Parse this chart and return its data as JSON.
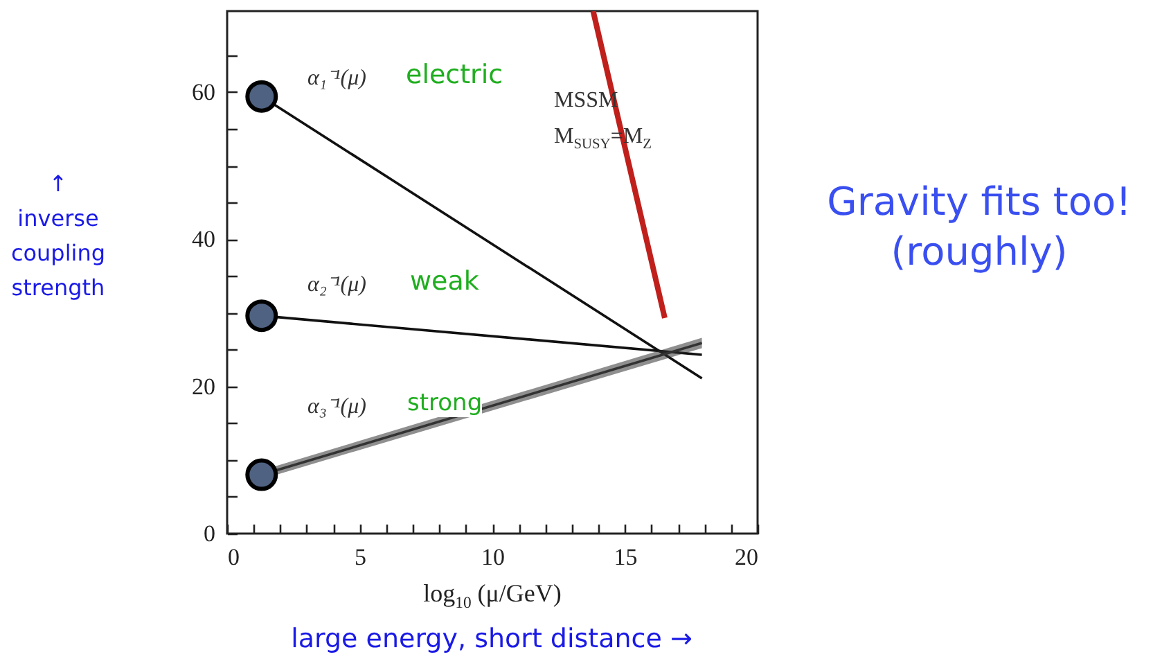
{
  "chart_data": {
    "type": "line",
    "xlabel": "log$_{10}$ (μ/GeV)",
    "ylabel": "↑\ninverse\ncoupling\nstrength",
    "xlim": [
      0,
      20
    ],
    "ylim": [
      0,
      71
    ],
    "xticks": [
      0,
      {
        "value": 1,
        "label": null
      },
      {
        "value": 2,
        "label": null
      },
      {
        "value": 3,
        "label": null
      },
      {
        "value": 4,
        "label": null
      },
      5,
      {
        "value": 6,
        "label": null
      },
      {
        "value": 7,
        "label": null
      },
      {
        "value": 8,
        "label": null
      },
      {
        "value": 9,
        "label": null
      },
      10,
      {
        "value": 11,
        "label": null
      },
      {
        "value": 12,
        "label": null
      },
      {
        "value": 13,
        "label": null
      },
      {
        "value": 14,
        "label": null
      },
      15,
      {
        "value": 16,
        "label": null
      },
      {
        "value": 17,
        "label": null
      },
      {
        "value": 18,
        "label": null
      },
      {
        "value": 19,
        "label": null
      },
      20
    ],
    "yticks": [
      0,
      {
        "value": 5,
        "label": null
      },
      {
        "value": 10,
        "label": null
      },
      {
        "value": 15,
        "label": null
      },
      20,
      {
        "value": 25,
        "label": null
      },
      {
        "value": 30,
        "label": null
      },
      {
        "value": 35,
        "label": null
      },
      40,
      {
        "value": 45,
        "label": null
      },
      {
        "value": 50,
        "label": null
      },
      {
        "value": 55,
        "label": null
      },
      60,
      {
        "value": 65,
        "label": null
      }
    ],
    "series": [
      {
        "name": "α₁⁻¹(μ)",
        "color": "#111111",
        "x": [
          1.3,
          17.9
        ],
        "values": [
          59.4,
          21.1
        ]
      },
      {
        "name": "α₂⁻¹(μ)",
        "color": "#111111",
        "x": [
          1.3,
          17.9
        ],
        "values": [
          29.6,
          24.3
        ]
      },
      {
        "name": "α₃⁻¹(μ)",
        "color": "#333333",
        "x": [
          1.3,
          17.9
        ],
        "values": [
          8.0,
          25.9
        ],
        "lower": [
          7.4,
          25.2
        ],
        "upper": [
          8.6,
          26.6
        ]
      },
      {
        "color": "#c0201c",
        "x": [
          13.8,
          16.5
        ],
        "values": [
          71,
          29.3
        ]
      },
      {
        "type": "scatter",
        "color": "#4f6282",
        "marker": "circle",
        "x": [
          1.3,
          1.3,
          1.3
        ],
        "values": [
          59.4,
          29.6,
          8.0
        ]
      }
    ],
    "annotations": [
      "electric",
      "weak",
      "strong",
      "MSSM",
      "M$_{SUSY}$=M$_{Z}$",
      "Gravity fits too!\n(roughly)",
      "large energy, short distance →"
    ],
    "grid": false
  }
}
